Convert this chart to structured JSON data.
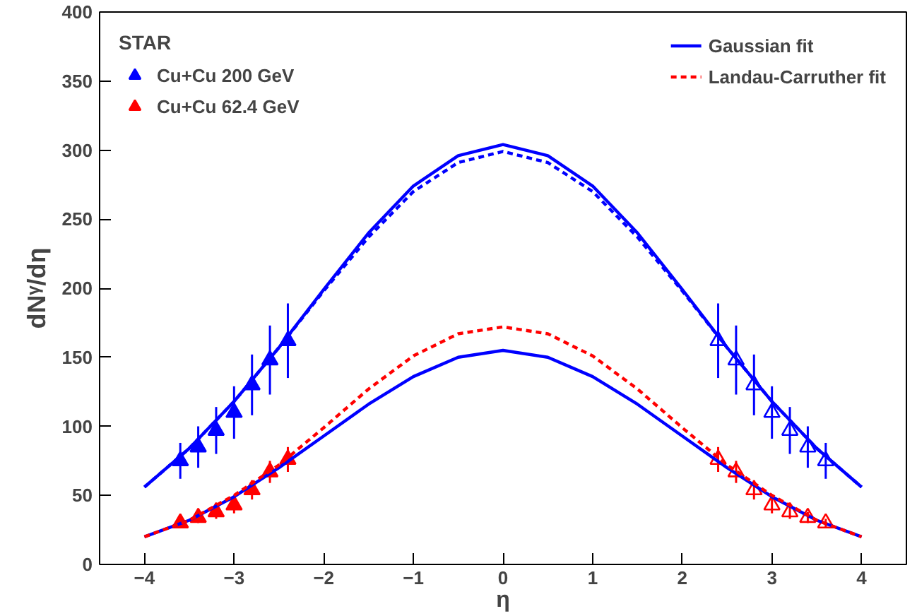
{
  "chart_data": {
    "type": "scatter",
    "xlabel": "η",
    "ylabel": "dNᵞ/dη",
    "legend_title": "STAR",
    "xlim": [
      -4.5,
      4.5
    ],
    "ylim": [
      0,
      400
    ],
    "xticks": [
      -4,
      -3,
      -2,
      -1,
      0,
      1,
      2,
      3,
      4
    ],
    "yticks": [
      0,
      50,
      100,
      150,
      200,
      250,
      300,
      350,
      400
    ],
    "grid": false,
    "legend": "top",
    "marker": "triangle",
    "series": [
      {
        "name": "Cu+Cu 200 GeV",
        "color": "#0000ff",
        "x": [
          -3.6,
          -3.4,
          -3.2,
          -3.0,
          -2.8,
          -2.6,
          -2.4
        ],
        "values": [
          75,
          85,
          97,
          110,
          130,
          148,
          162
        ],
        "errors": [
          13,
          15,
          17,
          19,
          22,
          25,
          27
        ]
      },
      {
        "name": "Cu+Cu 62.4 GeV",
        "color": "#ff0000",
        "x": [
          -3.6,
          -3.4,
          -3.2,
          -3.0,
          -2.8,
          -2.6,
          -2.4
        ],
        "values": [
          30,
          34,
          38,
          43,
          54,
          67,
          76
        ],
        "errors": [
          3,
          4,
          5,
          6,
          7,
          8,
          9
        ]
      },
      {
        "color": "#0000ff",
        "x": [
          2.4,
          2.6,
          2.8,
          3.0,
          3.2,
          3.4,
          3.6
        ],
        "values": [
          162,
          148,
          130,
          110,
          97,
          85,
          75
        ],
        "errors": [
          27,
          25,
          22,
          19,
          17,
          15,
          13
        ]
      },
      {
        "color": "#ff0000",
        "x": [
          2.4,
          2.6,
          2.8,
          3.0,
          3.2,
          3.4,
          3.6
        ],
        "values": [
          76,
          67,
          54,
          43,
          38,
          34,
          30
        ],
        "errors": [
          9,
          8,
          7,
          6,
          5,
          4,
          3
        ]
      },
      {
        "name": "Gaussian fit",
        "type": "line",
        "marker": "none",
        "line_style": "solid",
        "color": "#0000ff",
        "x": [
          -4,
          -3.5,
          -3,
          -2.5,
          -2,
          -1.5,
          -1,
          -0.5,
          0,
          0.5,
          1,
          1.5,
          2,
          2.5,
          3,
          3.5,
          4
        ],
        "values": [
          56,
          84,
          118,
          157,
          199,
          240,
          274,
          296,
          304,
          296,
          274,
          240,
          199,
          157,
          118,
          84,
          56
        ]
      },
      {
        "type": "line",
        "marker": "none",
        "line_style": "dashed",
        "color": "#0000ff",
        "x": [
          -4,
          -3.5,
          -3,
          -2.5,
          -2,
          -1.5,
          -1,
          -0.5,
          0,
          0.5,
          1,
          1.5,
          2,
          2.5,
          3,
          3.5,
          4
        ],
        "values": [
          56,
          84,
          118,
          157,
          198,
          237,
          270,
          291,
          299,
          291,
          270,
          237,
          198,
          157,
          118,
          84,
          56
        ]
      },
      {
        "type": "line",
        "marker": "none",
        "line_style": "solid",
        "color": "#0000ff",
        "x": [
          -4,
          -3.5,
          -3,
          -2.5,
          -2,
          -1.5,
          -1,
          -0.5,
          0,
          0.5,
          1,
          1.5,
          2,
          2.5,
          3,
          3.5,
          4
        ],
        "values": [
          20,
          32,
          49,
          70,
          93,
          116,
          136,
          150,
          155,
          150,
          136,
          116,
          93,
          70,
          49,
          32,
          20
        ]
      },
      {
        "name": "Landau-Carruther fit",
        "type": "line",
        "marker": "none",
        "line_style": "dashed",
        "color": "#ff0000",
        "x": [
          -4,
          -3.5,
          -3,
          -2.5,
          -2,
          -1.5,
          -1,
          -0.5,
          0,
          0.5,
          1,
          1.5,
          2,
          2.5,
          3,
          3.5,
          4
        ],
        "values": [
          20,
          32,
          50,
          72,
          99,
          127,
          151,
          167,
          172,
          167,
          151,
          127,
          99,
          72,
          50,
          32,
          20
        ]
      }
    ]
  }
}
